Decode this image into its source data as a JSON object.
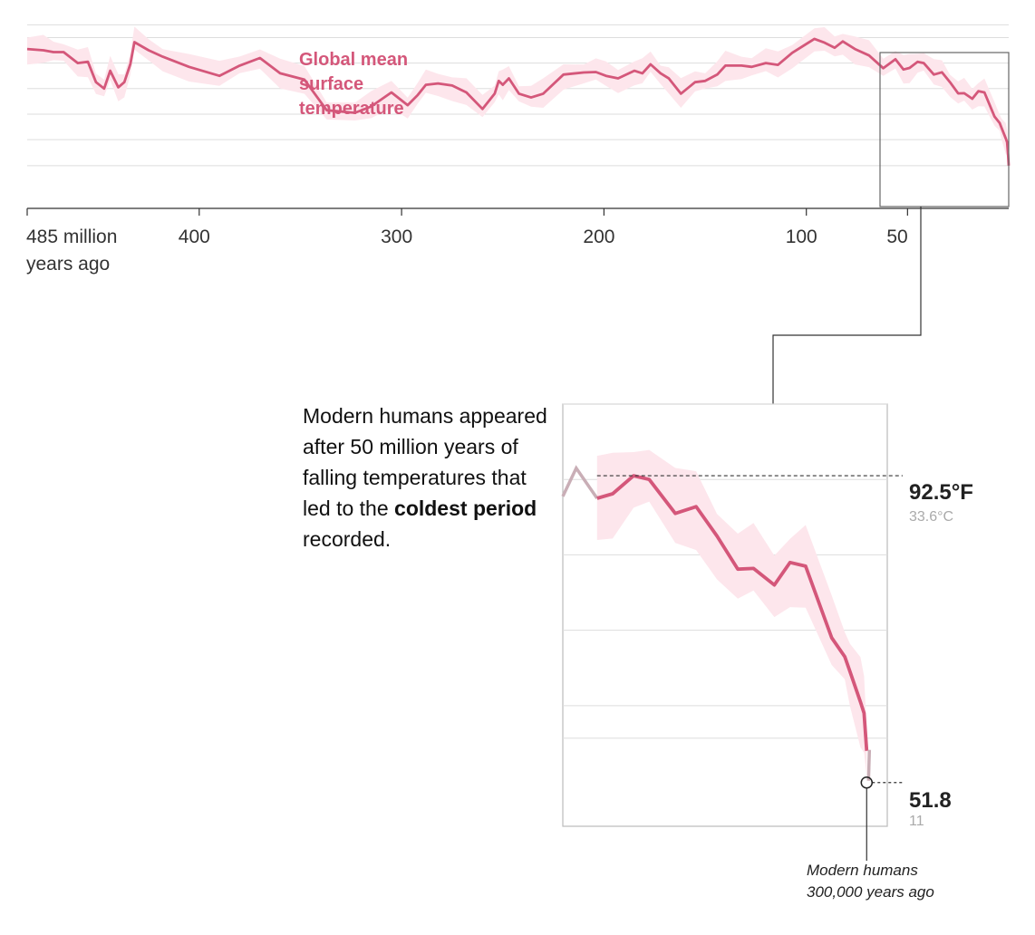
{
  "chart_data": [
    {
      "type": "area",
      "title": "Global mean surface temperature",
      "title_lines": [
        "Global mean",
        "surface",
        "temperature"
      ],
      "x_unit": "million years ago",
      "xlim": [
        485,
        0
      ],
      "ylim": [
        45,
        105
      ],
      "gridlines_y": [
        51.8,
        62,
        72,
        82,
        92,
        102
      ],
      "x_ticks": [
        {
          "value": 485,
          "label": "485 million",
          "label2": "years ago"
        },
        {
          "value": 400,
          "label": "400"
        },
        {
          "value": 300,
          "label": "300"
        },
        {
          "value": 200,
          "label": "200"
        },
        {
          "value": 100,
          "label": "100"
        },
        {
          "value": 50,
          "label": "50"
        }
      ],
      "x": [
        485,
        477,
        472,
        467,
        460,
        455,
        451,
        447,
        444,
        440,
        437,
        434,
        432,
        425,
        418,
        405,
        390,
        380,
        370,
        360,
        348,
        337,
        323,
        315,
        305,
        297,
        292,
        288,
        282,
        275,
        268,
        260,
        254,
        252,
        250,
        247,
        242,
        236,
        230,
        220,
        210,
        204,
        199,
        193,
        185,
        181,
        177,
        172,
        168,
        162,
        155,
        150,
        144,
        140,
        132,
        127,
        120,
        114,
        107,
        96,
        91,
        86,
        82,
        76,
        69,
        62,
        56,
        52,
        49,
        45,
        42,
        37,
        33,
        29,
        25,
        22,
        18,
        15,
        12,
        7,
        4.5,
        3.5,
        1.5,
        0.8,
        0.3,
        0.012
      ],
      "mean": [
        97.5,
        97,
        96.3,
        96.3,
        92,
        92.5,
        84.5,
        82,
        89,
        82.5,
        84.5,
        91.7,
        100.2,
        97,
        94.5,
        90.5,
        87,
        91,
        94,
        88,
        85.5,
        73.5,
        72.5,
        75,
        80.5,
        75.5,
        79.5,
        83.5,
        84,
        83.2,
        80.5,
        74,
        80,
        85,
        83.5,
        86,
        80,
        78.5,
        80,
        87.5,
        88.3,
        88.5,
        87,
        86,
        89,
        88,
        91.5,
        88,
        86,
        80,
        84.5,
        85,
        87.5,
        91,
        91,
        90.5,
        92,
        91.3,
        96,
        101.5,
        100,
        98,
        100.5,
        97.5,
        95,
        90,
        93.5,
        89.5,
        90.1,
        92.5,
        92,
        87.5,
        88.4,
        84.5,
        80.1,
        80.2,
        78,
        81,
        80.5,
        71,
        68.5,
        66.5,
        62.5,
        61,
        56,
        51.8
      ],
      "band_width": 4.5,
      "inset": {
        "xlim": [
          57,
          0
        ],
        "ylim": [
          46,
          102
        ],
        "start_label": {
          "value": "92.5°F",
          "note": "33.6°C",
          "x": 52
        },
        "end_label": {
          "value": "51.8",
          "note": "11",
          "x": 0.3
        },
        "human_note": [
          "Modern humans",
          "300,000 years ago"
        ]
      }
    }
  ],
  "annotation": {
    "text_before": "Modern humans appeared after 50 million years of falling temperatures that led to the ",
    "bold": "coldest period",
    "text_after": " recorded."
  },
  "colors": {
    "line": "#d4577a",
    "band": "#fde6ec",
    "grid": "#dddddd",
    "axis": "#333333",
    "frame": "#666666",
    "muted_line": "#c9aeb6"
  }
}
